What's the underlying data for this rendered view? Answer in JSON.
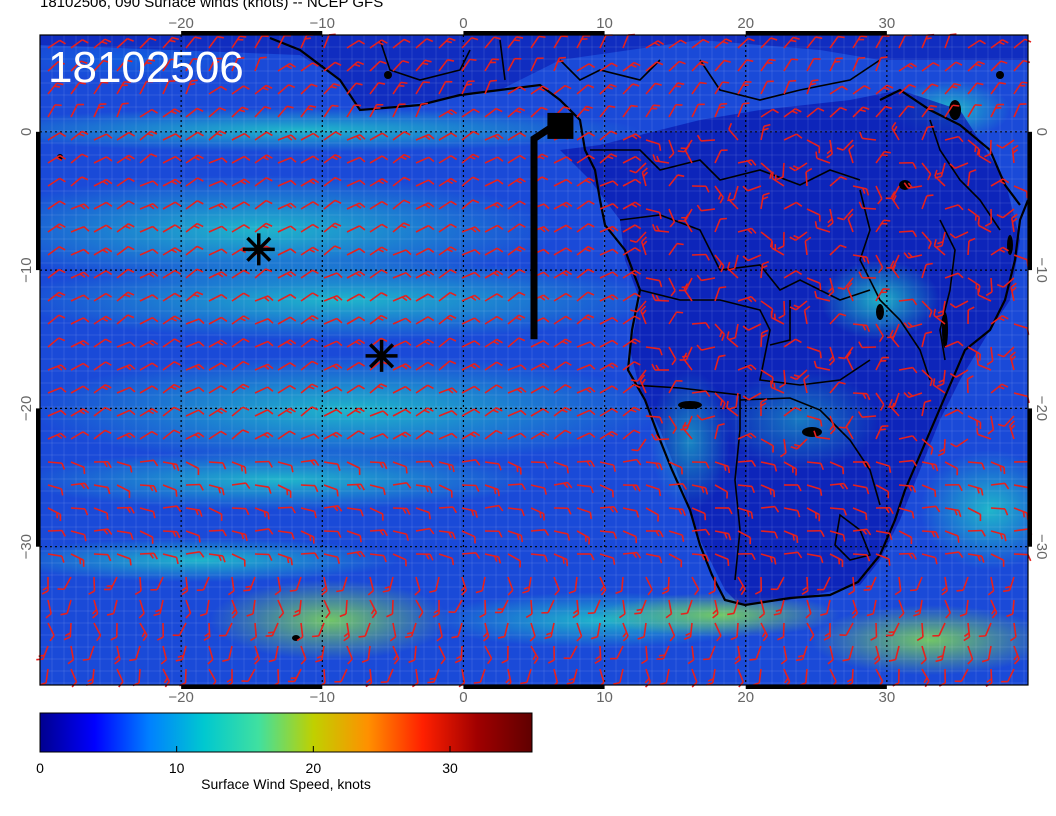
{
  "title": "18102506, 090 Surface winds (knots) -- NCEP GFS",
  "stamp": "18102506",
  "map": {
    "lon_range": [
      -30,
      40
    ],
    "lat_range": [
      -40,
      7
    ],
    "lon_ticks": [
      -20,
      -10,
      0,
      10,
      20,
      30
    ],
    "lat_ticks": [
      0,
      -10,
      -20,
      -30
    ],
    "lon_tick_labels": [
      "−20",
      "−10",
      "0",
      "10",
      "20",
      "30"
    ],
    "lat_tick_labels": [
      "0",
      "−10",
      "−20",
      "−30"
    ],
    "grid": true,
    "barb_color": "#e8201c",
    "land_outline_color": "#000000",
    "markers": [
      {
        "type": "asterisk",
        "lon": -14.5,
        "lat": -8.5
      },
      {
        "type": "asterisk",
        "lon": -5.8,
        "lat": -16.2
      }
    ],
    "track": {
      "lon": [
        5.0,
        5.0,
        6.5
      ],
      "lat": [
        -15.0,
        -0.5,
        0.5
      ]
    },
    "track_end_square": {
      "lon": 6.8,
      "lat": 0.5
    }
  },
  "colorbar": {
    "label": "Surface Wind Speed, knots",
    "tick_values": [
      0,
      10,
      20,
      30
    ],
    "tick_labels": [
      "0",
      "10",
      "20",
      "30"
    ],
    "range": [
      0,
      36
    ],
    "colormap": [
      "#00008f",
      "#0000ff",
      "#0080ff",
      "#00c8d0",
      "#40e0a0",
      "#c0d000",
      "#ff9000",
      "#ff2000",
      "#a00000",
      "#600000"
    ]
  }
}
